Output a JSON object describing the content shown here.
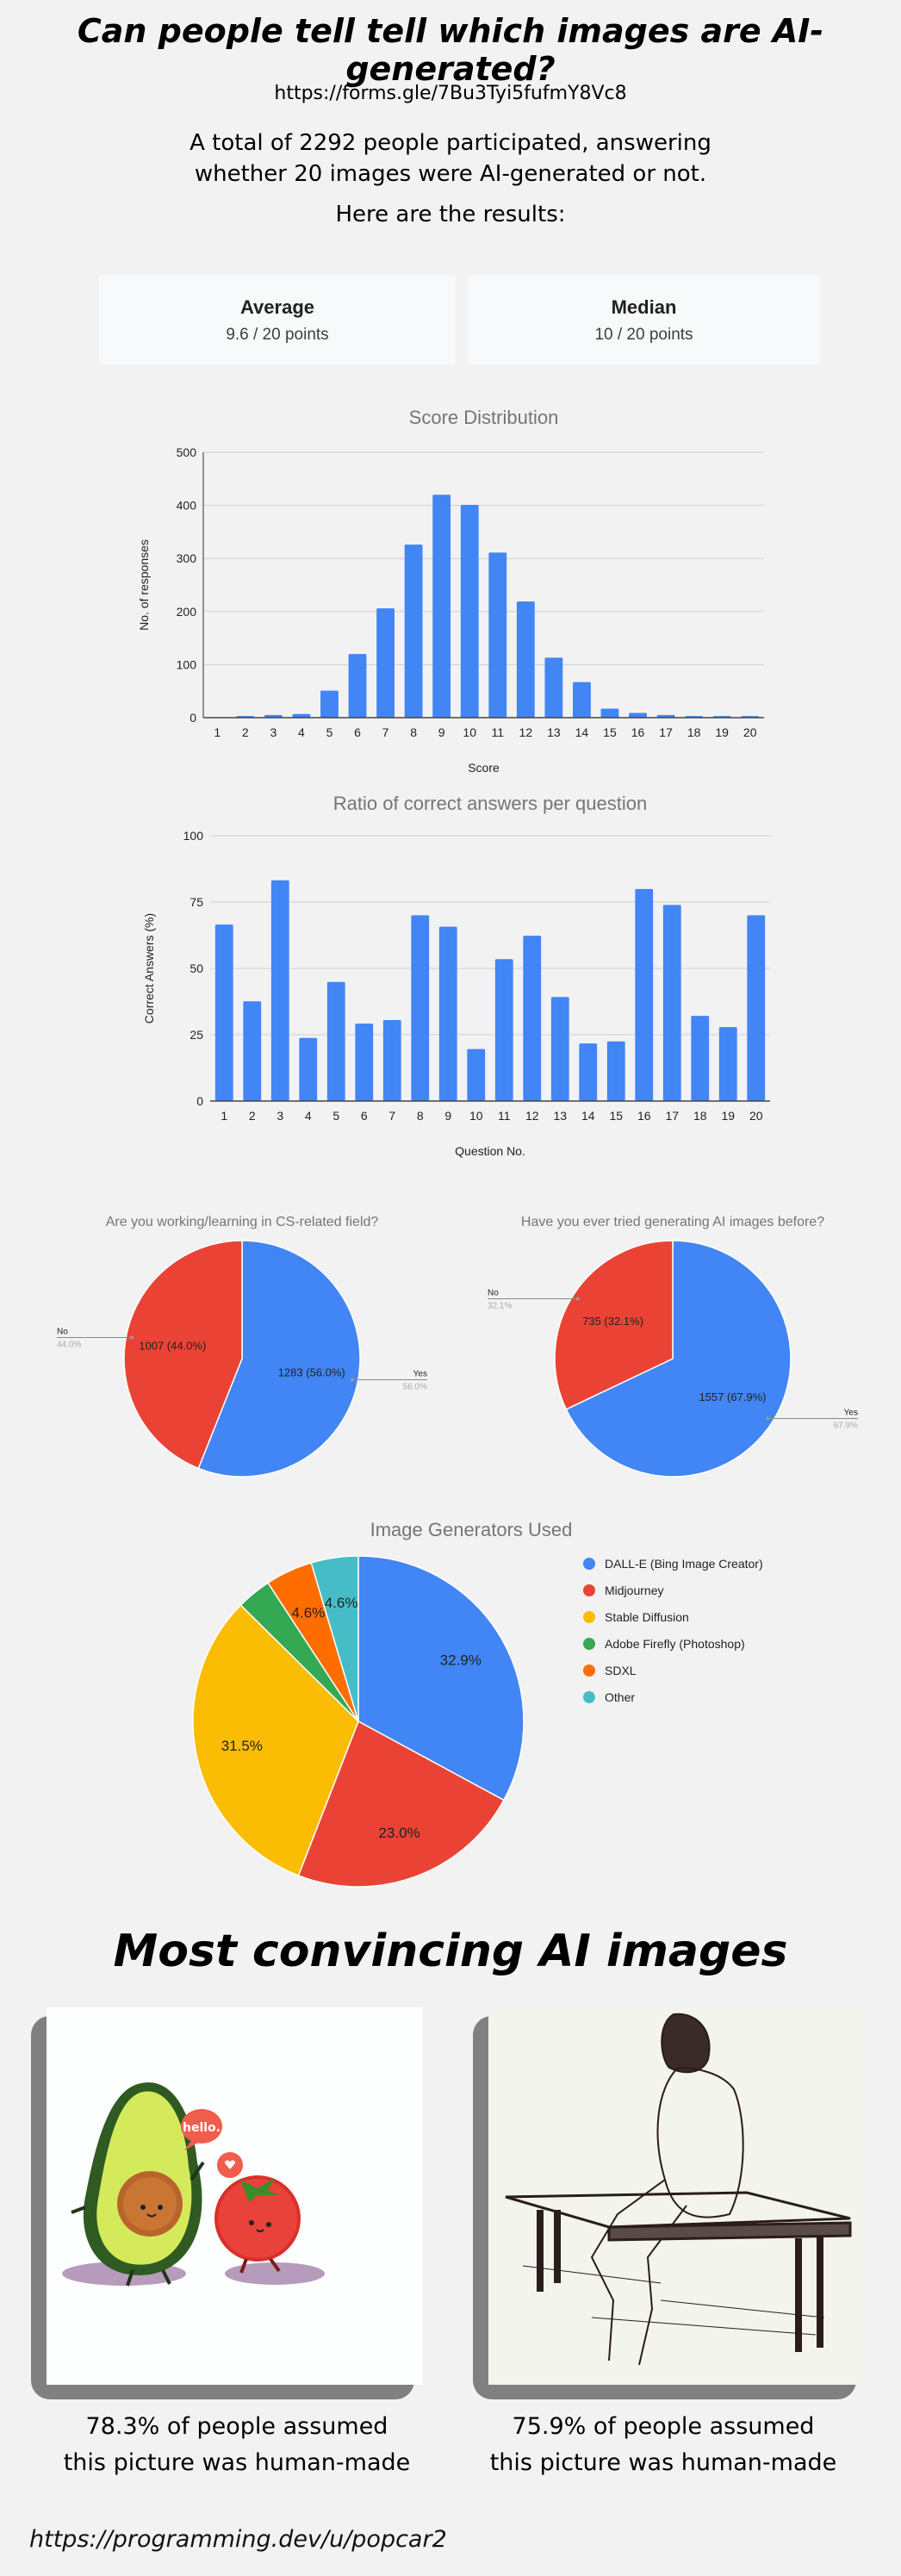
{
  "header": {
    "title": "Can people tell tell which images are AI-generated?",
    "form_url": "https://forms.gle/7Bu3Tyi5fufmY8Vc8",
    "intro_line1": "A total of 2292 people participated, answering",
    "intro_line2": "whether 20 images were AI-generated or not.",
    "results_label": "Here are the results:"
  },
  "stats": {
    "average_label": "Average",
    "average_value": "9.6 / 20 points",
    "median_label": "Median",
    "median_value": "10 / 20 points"
  },
  "colors": {
    "blue": "#4285f4",
    "red": "#ea4335",
    "yellow": "#fbbc04",
    "green": "#34a853",
    "orange": "#ff6d01",
    "teal": "#46bdc6"
  },
  "chart_data": [
    {
      "type": "bar",
      "title": "Score Distribution",
      "xlabel": "Score",
      "ylabel": "No. of responses",
      "categories": [
        "1",
        "2",
        "3",
        "4",
        "5",
        "6",
        "7",
        "8",
        "9",
        "10",
        "11",
        "12",
        "13",
        "14",
        "15",
        "16",
        "17",
        "18",
        "19",
        "20"
      ],
      "values": [
        0,
        3,
        5,
        7,
        51,
        120,
        206,
        326,
        420,
        401,
        311,
        219,
        113,
        67,
        17,
        9,
        5,
        3,
        3,
        3
      ],
      "ylim": [
        0,
        500
      ],
      "yticks": [
        "0",
        "100",
        "200",
        "300",
        "400",
        "500"
      ],
      "grid": true
    },
    {
      "type": "bar",
      "title": "Ratio of correct answers per question",
      "xlabel": "Question No.",
      "ylabel": "Correct Answers (%)",
      "categories": [
        "1",
        "2",
        "3",
        "4",
        "5",
        "6",
        "7",
        "8",
        "9",
        "10",
        "11",
        "12",
        "13",
        "14",
        "15",
        "16",
        "17",
        "18",
        "19",
        "20"
      ],
      "values": [
        66.5,
        37.6,
        83.2,
        23.8,
        44.9,
        29.2,
        30.5,
        70.0,
        65.7,
        19.6,
        53.5,
        62.3,
        39.2,
        21.7,
        22.5,
        79.9,
        73.9,
        32.1,
        27.9,
        70.0
      ],
      "ylim": [
        0,
        100
      ],
      "yticks": [
        "0",
        "25",
        "50",
        "75",
        "100"
      ],
      "grid": true
    },
    {
      "type": "pie",
      "title": "Are you working/learning in CS-related field?",
      "slices": [
        {
          "label": "Yes",
          "value": 1283,
          "pct": "56.0%",
          "inner": "1283 (56.0%)"
        },
        {
          "label": "No",
          "value": 1007,
          "pct": "44.0%",
          "inner": "1007 (44.0%)"
        }
      ]
    },
    {
      "type": "pie",
      "title": "Have you ever tried generating AI images before?",
      "slices": [
        {
          "label": "Yes",
          "value": 1557,
          "pct": "67.9%",
          "inner": "1557 (67.9%)"
        },
        {
          "label": "No",
          "value": 735,
          "pct": "32.1%",
          "inner": "735 (32.1%)"
        }
      ]
    },
    {
      "type": "pie",
      "title": "Image Generators Used",
      "legend": "right",
      "slices": [
        {
          "label": "DALL-E (Bing Image Creator)",
          "value": 32.9,
          "inner": "32.9%"
        },
        {
          "label": "Midjourney",
          "value": 23.0,
          "inner": "23.0%"
        },
        {
          "label": "Stable Diffusion",
          "value": 31.5,
          "inner": "31.5%"
        },
        {
          "label": "Adobe Firefly (Photoshop)",
          "value": 3.4,
          "inner": ""
        },
        {
          "label": "SDXL",
          "value": 4.6,
          "inner": "4.6%"
        },
        {
          "label": "Other",
          "value": 4.6,
          "inner": "4.6%"
        }
      ]
    }
  ],
  "convincing": {
    "title": "Most convincing AI images",
    "items": [
      {
        "line1": "78.3% of people assumed",
        "line2": "this picture was human-made",
        "speech": "hello."
      },
      {
        "line1": "75.9% of people assumed",
        "line2": "this picture was human-made"
      }
    ]
  },
  "footer": {
    "link": "https://programming.dev/u/popcar2"
  }
}
